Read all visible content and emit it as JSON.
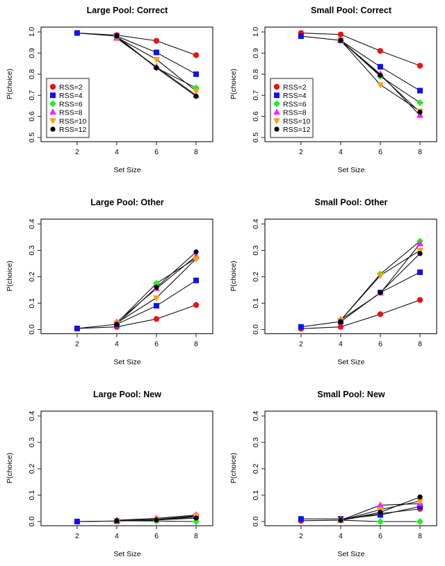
{
  "chart_data": [
    {
      "type": "line",
      "title": "Large Pool: Correct",
      "xlabel": "Set Size",
      "ylabel": "P(choice)",
      "x": [
        2,
        4,
        6,
        8
      ],
      "ylim": [
        0.5,
        1.0
      ],
      "yticks": [
        "0.5",
        "0.6",
        "0.7",
        "0.8",
        "0.9",
        "1.0"
      ],
      "xticks": [
        "2",
        "4",
        "6",
        "8"
      ],
      "legend": "bottom-left",
      "series": [
        {
          "name": "RSS=2",
          "values": [
            0.995,
            0.985,
            0.958,
            0.89
          ]
        },
        {
          "name": "RSS=4",
          "values": [
            0.995,
            0.98,
            0.903,
            0.8
          ]
        },
        {
          "name": "RSS=6",
          "values": [
            null,
            0.975,
            0.83,
            0.735
          ]
        },
        {
          "name": "RSS=8",
          "values": [
            null,
            0.97,
            0.835,
            0.7
          ]
        },
        {
          "name": "RSS=10",
          "values": [
            null,
            0.975,
            0.87,
            0.72
          ]
        },
        {
          "name": "RSS=12",
          "values": [
            null,
            0.98,
            0.83,
            0.695
          ]
        }
      ]
    },
    {
      "type": "line",
      "title": "Small Pool: Correct",
      "xlabel": "Set Size",
      "ylabel": "P(choice)",
      "x": [
        2,
        4,
        6,
        8
      ],
      "ylim": [
        0.5,
        1.0
      ],
      "yticks": [
        "0.5",
        "0.6",
        "0.7",
        "0.8",
        "0.9",
        "1.0"
      ],
      "xticks": [
        "2",
        "4",
        "6",
        "8"
      ],
      "legend": "bottom-left",
      "series": [
        {
          "name": "RSS=2",
          "values": [
            0.995,
            0.988,
            0.91,
            0.84
          ]
        },
        {
          "name": "RSS=4",
          "values": [
            0.98,
            0.96,
            0.835,
            0.722
          ]
        },
        {
          "name": "RSS=6",
          "values": [
            null,
            0.96,
            0.79,
            0.665
          ]
        },
        {
          "name": "RSS=8",
          "values": [
            null,
            0.96,
            0.8,
            0.605
          ]
        },
        {
          "name": "RSS=10",
          "values": [
            null,
            0.96,
            0.75,
            0.625
          ]
        },
        {
          "name": "RSS=12",
          "values": [
            null,
            0.96,
            0.795,
            0.62
          ]
        }
      ]
    },
    {
      "type": "line",
      "title": "Large Pool: Other",
      "xlabel": "Set Size",
      "ylabel": "P(choice)",
      "x": [
        2,
        4,
        6,
        8
      ],
      "ylim": [
        0.0,
        0.4
      ],
      "yticks": [
        "0.0",
        "0.1",
        "0.2",
        "0.3",
        "0.4"
      ],
      "xticks": [
        "2",
        "4",
        "6",
        "8"
      ],
      "series": [
        {
          "name": "RSS=2",
          "values": [
            0.004,
            0.01,
            0.04,
            0.093
          ]
        },
        {
          "name": "RSS=4",
          "values": [
            0.004,
            0.02,
            0.09,
            0.186
          ]
        },
        {
          "name": "RSS=6",
          "values": [
            null,
            0.025,
            0.175,
            0.27
          ]
        },
        {
          "name": "RSS=8",
          "values": [
            null,
            0.028,
            0.155,
            0.278
          ]
        },
        {
          "name": "RSS=10",
          "values": [
            null,
            0.025,
            0.12,
            0.268
          ]
        },
        {
          "name": "RSS=12",
          "values": [
            null,
            0.02,
            0.16,
            0.294
          ]
        }
      ]
    },
    {
      "type": "line",
      "title": "Small Pool: Other",
      "xlabel": "Set Size",
      "ylabel": "P(choice)",
      "x": [
        2,
        4,
        6,
        8
      ],
      "ylim": [
        0.0,
        0.4
      ],
      "yticks": [
        "0.0",
        "0.1",
        "0.2",
        "0.3",
        "0.4"
      ],
      "xticks": [
        "2",
        "4",
        "6",
        "8"
      ],
      "series": [
        {
          "name": "RSS=2",
          "values": [
            0.003,
            0.01,
            0.058,
            0.112
          ]
        },
        {
          "name": "RSS=4",
          "values": [
            0.01,
            0.03,
            0.14,
            0.217
          ]
        },
        {
          "name": "RSS=6",
          "values": [
            null,
            0.035,
            0.21,
            0.335
          ]
        },
        {
          "name": "RSS=8",
          "values": [
            null,
            0.037,
            0.138,
            0.325
          ]
        },
        {
          "name": "RSS=10",
          "values": [
            null,
            0.035,
            0.205,
            0.3
          ]
        },
        {
          "name": "RSS=12",
          "values": [
            null,
            0.03,
            0.14,
            0.288
          ]
        }
      ]
    },
    {
      "type": "line",
      "title": "Large Pool: New",
      "xlabel": "Set Size",
      "ylabel": "P(choice)",
      "x": [
        2,
        4,
        6,
        8
      ],
      "ylim": [
        0.0,
        0.4
      ],
      "yticks": [
        "0.0",
        "0.1",
        "0.2",
        "0.3",
        "0.4"
      ],
      "xticks": [
        "2",
        "4",
        "6",
        "8"
      ],
      "series": [
        {
          "name": "RSS=2",
          "values": [
            0.0,
            0.002,
            0.005,
            0.018
          ]
        },
        {
          "name": "RSS=4",
          "values": [
            0.0,
            0.002,
            0.007,
            0.02
          ]
        },
        {
          "name": "RSS=6",
          "values": [
            null,
            0.003,
            0.002,
            0.0
          ]
        },
        {
          "name": "RSS=8",
          "values": [
            null,
            0.005,
            0.012,
            0.025
          ]
        },
        {
          "name": "RSS=10",
          "values": [
            null,
            0.003,
            0.008,
            0.022
          ]
        },
        {
          "name": "RSS=12",
          "values": [
            null,
            0.003,
            0.006,
            0.013
          ]
        }
      ]
    },
    {
      "type": "line",
      "title": "Small Pool: New",
      "xlabel": "Set Size",
      "ylabel": "P(choice)",
      "x": [
        2,
        4,
        6,
        8
      ],
      "ylim": [
        0.0,
        0.4
      ],
      "yticks": [
        "0.0",
        "0.1",
        "0.2",
        "0.3",
        "0.4"
      ],
      "xticks": [
        "2",
        "4",
        "6",
        "8"
      ],
      "series": [
        {
          "name": "RSS=2",
          "values": [
            0.003,
            0.005,
            0.03,
            0.048
          ]
        },
        {
          "name": "RSS=4",
          "values": [
            0.01,
            0.01,
            0.025,
            0.057
          ]
        },
        {
          "name": "RSS=6",
          "values": [
            null,
            0.005,
            0.0,
            0.0
          ]
        },
        {
          "name": "RSS=8",
          "values": [
            null,
            0.005,
            0.062,
            0.068
          ]
        },
        {
          "name": "RSS=10",
          "values": [
            null,
            0.005,
            0.045,
            0.078
          ]
        },
        {
          "name": "RSS=12",
          "values": [
            null,
            0.005,
            0.035,
            0.093
          ]
        }
      ]
    }
  ],
  "series_style": [
    {
      "color": "#ee1111",
      "marker": "circle"
    },
    {
      "color": "#1111ee",
      "marker": "square"
    },
    {
      "color": "#22ee22",
      "marker": "diamond"
    },
    {
      "color": "#ff22ff",
      "marker": "triangle-up"
    },
    {
      "color": "#ffa010",
      "marker": "triangle-down"
    },
    {
      "color": "#000000",
      "marker": "small-circle"
    }
  ]
}
